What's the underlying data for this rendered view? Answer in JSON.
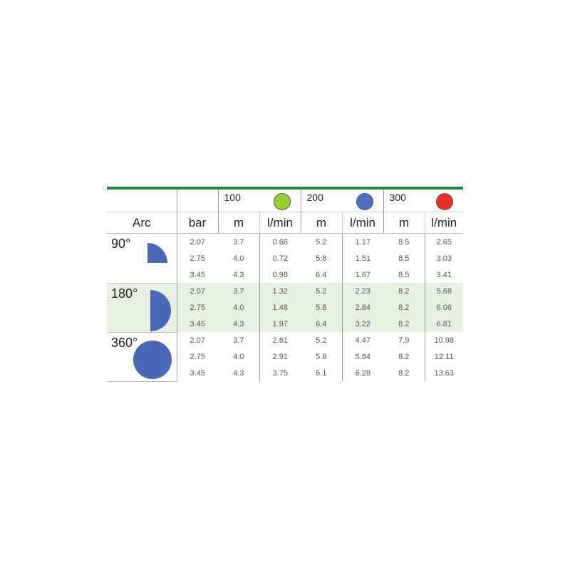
{
  "colors": {
    "header_line": "#1f8a3c",
    "highlight_row": "#e6f1e2",
    "arc_shape": "#4a68b8"
  },
  "headers": {
    "arc": "Arc",
    "bar": "bar",
    "nozzles": [
      {
        "label": "100",
        "color": "#9ccc33",
        "m": "m",
        "flow": "l/min"
      },
      {
        "label": "200",
        "color": "#4a6fc0",
        "m": "m",
        "flow": "l/min"
      },
      {
        "label": "300",
        "color": "#e8302a",
        "m": "m",
        "flow": "l/min"
      }
    ]
  },
  "groups": [
    {
      "arc": "90°",
      "shape": "quarter-circle-icon",
      "highlight": false,
      "rows": [
        [
          "2.07",
          "3.7",
          "0.68",
          "5.2",
          "1.17",
          "8.5",
          "2.65"
        ],
        [
          "2.75",
          "4.0",
          "0.72",
          "5.8",
          "1.51",
          "8.5",
          "3.03"
        ],
        [
          "3.45",
          "4.3",
          "0.98",
          "6.4",
          "1.67",
          "8.5",
          "3.41"
        ]
      ]
    },
    {
      "arc": "180°",
      "shape": "half-circle-icon",
      "highlight": true,
      "rows": [
        [
          "2.07",
          "3.7",
          "1.32",
          "5.2",
          "2.23",
          "8.2",
          "5.68"
        ],
        [
          "2.75",
          "4.0",
          "1.48",
          "5.8",
          "2.84",
          "8.2",
          "6.06"
        ],
        [
          "3.45",
          "4.3",
          "1.97",
          "6.4",
          "3.22",
          "8.2",
          "6.81"
        ]
      ]
    },
    {
      "arc": "360°",
      "shape": "full-circle-icon",
      "highlight": false,
      "rows": [
        [
          "2.07",
          "3.7",
          "2.61",
          "5.2",
          "4.47",
          "7.9",
          "10.98"
        ],
        [
          "2.75",
          "4.0",
          "2.91",
          "5.8",
          "5.64",
          "8.2",
          "12.11"
        ],
        [
          "3.45",
          "4.3",
          "3.75",
          "6.1",
          "6.28",
          "8.2",
          "13.63"
        ]
      ]
    }
  ]
}
